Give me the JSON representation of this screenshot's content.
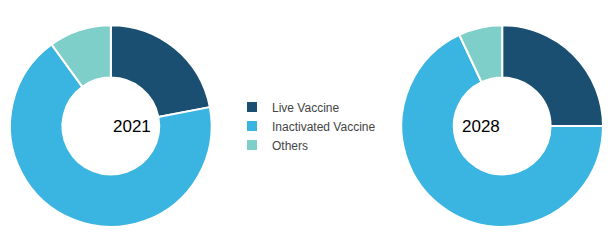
{
  "chart_data": [
    {
      "type": "donut",
      "annotations": [
        "2021"
      ],
      "categories": [
        "Live Vaccine",
        "Inactivated Vaccine",
        "Others"
      ],
      "values": [
        22,
        68,
        10
      ],
      "colors": [
        "#1b4f72",
        "#3ab4e0",
        "#7ececa"
      ],
      "legend": "center"
    },
    {
      "type": "donut",
      "annotations": [
        "2028"
      ],
      "categories": [
        "Live Vaccine",
        "Inactivated Vaccine",
        "Others"
      ],
      "values": [
        25,
        68,
        7
      ],
      "colors": [
        "#1b4f72",
        "#3ab4e0",
        "#7ececa"
      ]
    }
  ]
}
